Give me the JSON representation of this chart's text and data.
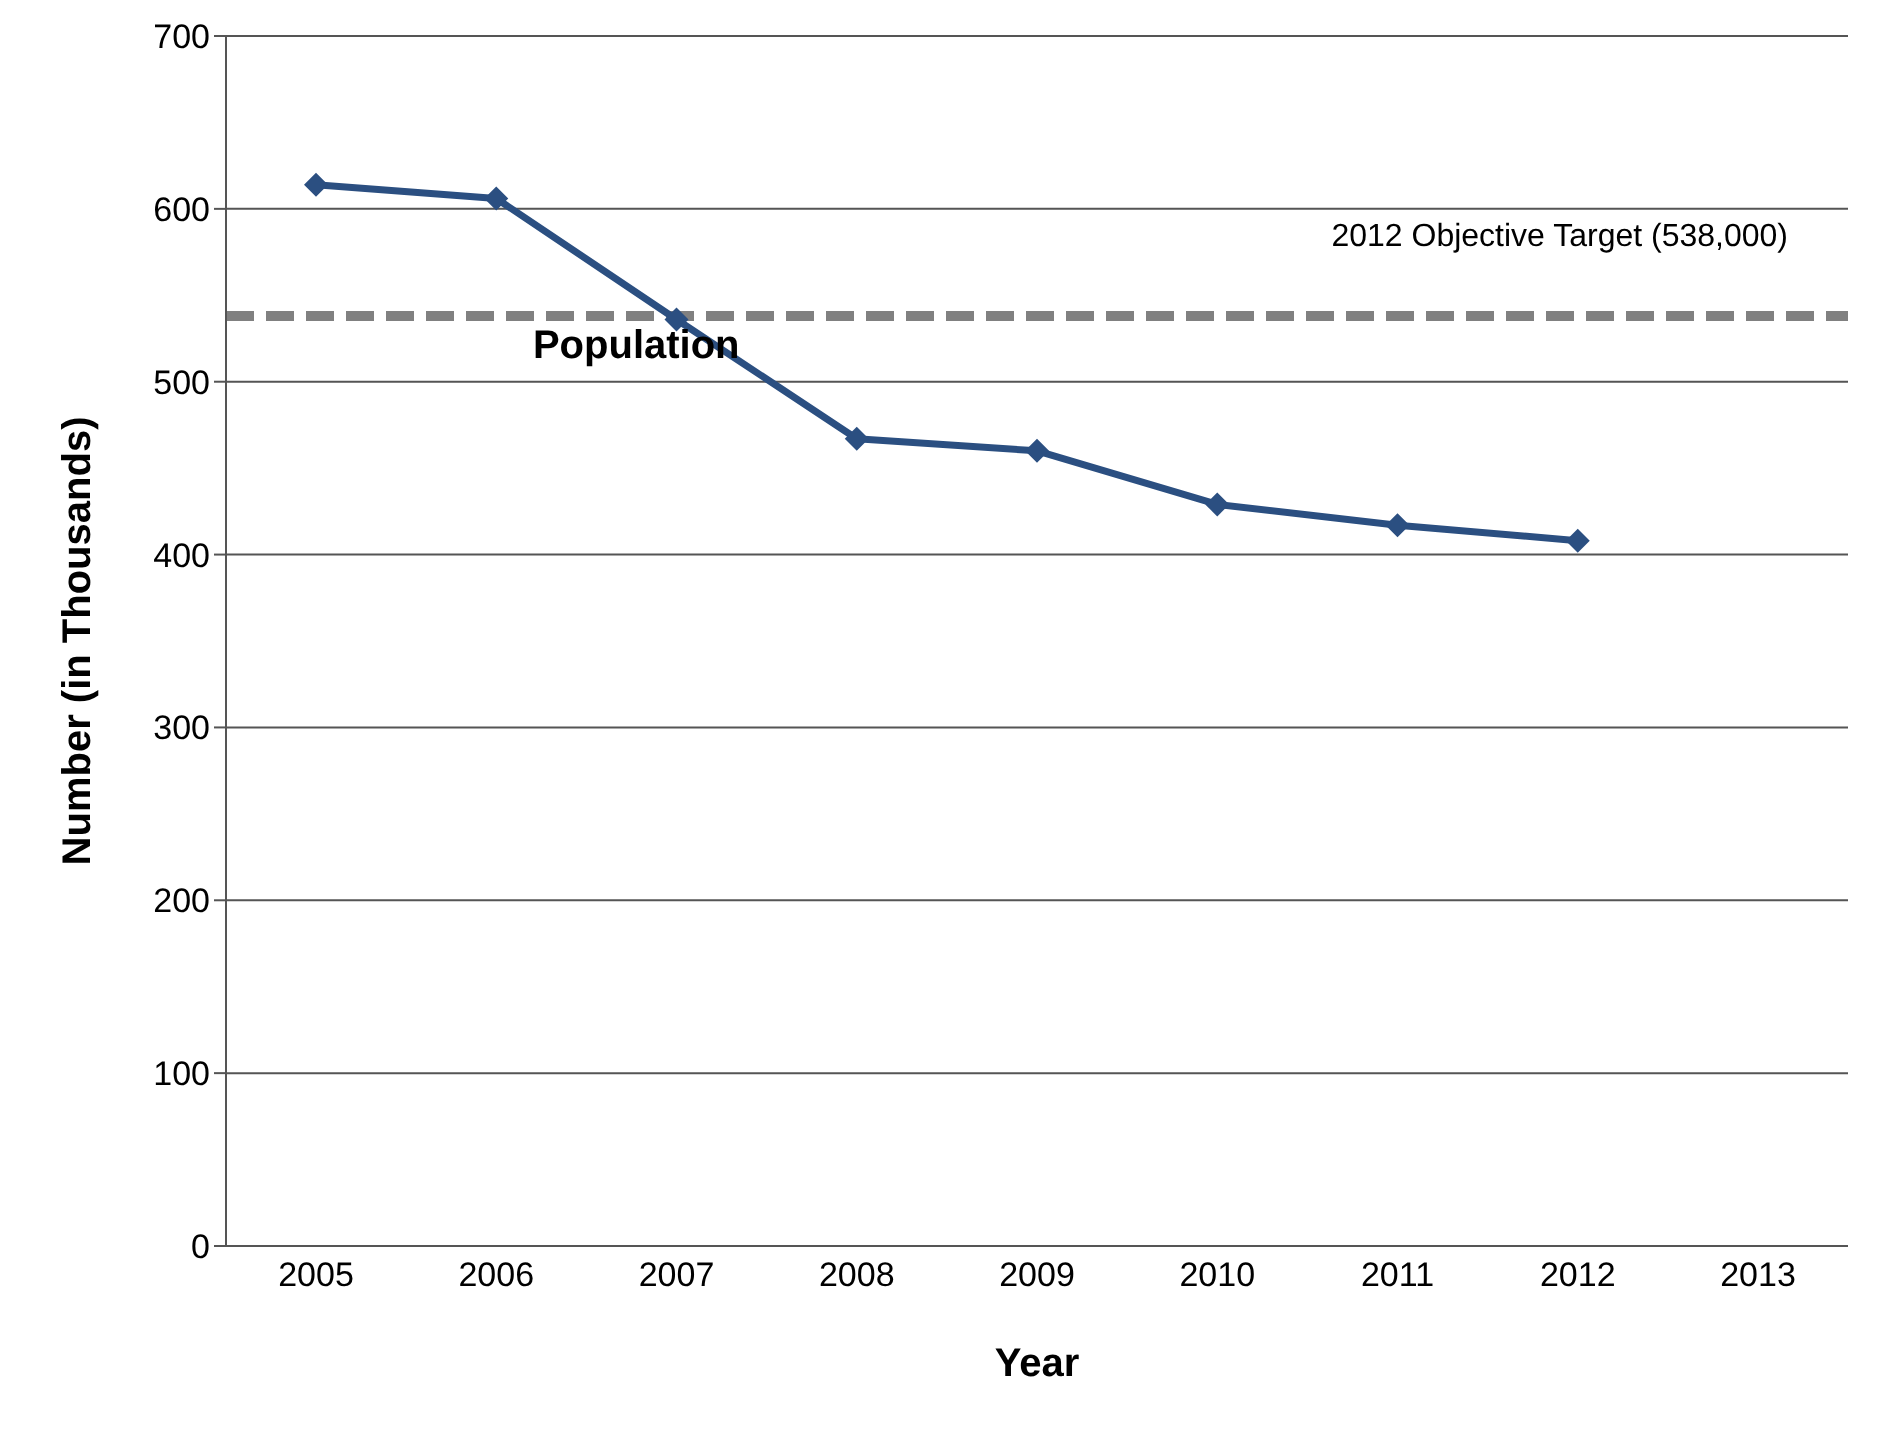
{
  "chart_data": {
    "type": "line",
    "xlabel": "Year",
    "ylabel": "Number (in Thousands)",
    "categories": [
      "2005",
      "2006",
      "2007",
      "2008",
      "2009",
      "2010",
      "2011",
      "2012",
      "2013"
    ],
    "series": [
      {
        "name": "Population",
        "color": "#2b4f81",
        "values": [
          614,
          606,
          536,
          467,
          460,
          429,
          417,
          408,
          null
        ]
      }
    ],
    "ylim": [
      0,
      700
    ],
    "yticks": [
      0,
      100,
      200,
      300,
      400,
      500,
      600,
      700
    ],
    "grid": "y",
    "legend": false,
    "marker": "diamond",
    "line_style": "solid",
    "ref_lines": [
      {
        "axis": "y",
        "value": 538,
        "label": "2012 Objective  Target (538,000)",
        "color": "#808080",
        "line_style": "dashed"
      }
    ]
  }
}
